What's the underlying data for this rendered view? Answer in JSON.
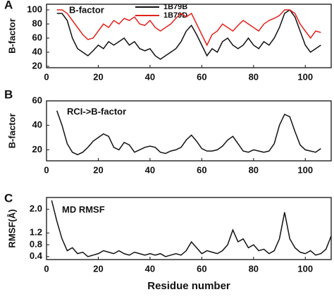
{
  "chart_data": [
    {
      "type": "line",
      "panel_label": "A",
      "title": "B-factor",
      "ylabel": "B-factor",
      "x": [
        4,
        6,
        8,
        10,
        12,
        14,
        16,
        18,
        20,
        22,
        24,
        26,
        28,
        30,
        32,
        34,
        36,
        38,
        40,
        42,
        44,
        46,
        48,
        50,
        52,
        54,
        56,
        58,
        60,
        62,
        64,
        66,
        68,
        70,
        72,
        74,
        76,
        78,
        80,
        82,
        84,
        86,
        88,
        90,
        92,
        94,
        96,
        98,
        100,
        102,
        104,
        106
      ],
      "series": [
        {
          "name": "1B79B",
          "color": "#111111",
          "values": [
            95,
            95,
            85,
            60,
            45,
            40,
            35,
            42,
            50,
            45,
            55,
            50,
            55,
            60,
            50,
            55,
            45,
            42,
            45,
            35,
            30,
            35,
            40,
            45,
            55,
            70,
            78,
            65,
            50,
            35,
            45,
            40,
            55,
            60,
            50,
            45,
            50,
            60,
            50,
            45,
            55,
            50,
            60,
            75,
            95,
            100,
            90,
            70,
            50,
            40,
            45,
            50
          ]
        },
        {
          "name": "1B79D",
          "color": "#e3221c",
          "values": [
            100,
            100,
            95,
            85,
            75,
            65,
            58,
            60,
            70,
            80,
            75,
            85,
            80,
            88,
            85,
            90,
            80,
            78,
            85,
            75,
            70,
            75,
            80,
            88,
            95,
            90,
            95,
            80,
            65,
            50,
            65,
            70,
            80,
            75,
            70,
            78,
            85,
            80,
            75,
            70,
            80,
            85,
            88,
            92,
            100,
            100,
            95,
            80,
            70,
            60,
            70,
            68
          ]
        }
      ],
      "xlim": [
        0,
        110
      ],
      "xticks": [
        0,
        20,
        40,
        60,
        80,
        100
      ],
      "ylim": [
        18,
        108
      ],
      "yticks": [
        20,
        40,
        60,
        80,
        100
      ]
    },
    {
      "type": "line",
      "panel_label": "B",
      "annotation": "RCI->B-factor",
      "ylabel": "B-factor",
      "x": [
        4,
        6,
        8,
        10,
        12,
        14,
        16,
        18,
        20,
        22,
        24,
        26,
        28,
        30,
        32,
        34,
        36,
        38,
        40,
        42,
        44,
        46,
        48,
        50,
        52,
        54,
        56,
        58,
        60,
        62,
        64,
        66,
        68,
        70,
        72,
        74,
        76,
        78,
        80,
        82,
        84,
        86,
        88,
        90,
        92,
        94,
        96,
        98,
        100,
        102,
        104,
        106
      ],
      "series": [
        {
          "color": "#111111",
          "values": [
            52,
            40,
            25,
            18,
            16,
            18,
            22,
            27,
            30,
            33,
            31,
            22,
            20,
            26,
            24,
            18,
            20,
            22,
            23,
            22,
            18,
            17,
            19,
            20,
            22,
            28,
            32,
            27,
            21,
            19,
            19,
            20,
            23,
            28,
            31,
            25,
            19,
            18,
            20,
            19,
            18,
            19,
            25,
            40,
            49,
            47,
            35,
            24,
            20,
            19,
            18,
            21
          ]
        }
      ],
      "xlim": [
        0,
        110
      ],
      "xticks": [
        0,
        20,
        40,
        60,
        80,
        100
      ],
      "ylim": [
        11,
        60
      ],
      "yticks": [
        20,
        40,
        60
      ]
    },
    {
      "type": "line",
      "panel_label": "C",
      "annotation": "MD RMSF",
      "ylabel": "RMSF(Å)",
      "xlabel": "Residue number",
      "x": [
        2,
        4,
        6,
        8,
        10,
        12,
        14,
        16,
        18,
        20,
        22,
        24,
        26,
        28,
        30,
        32,
        34,
        36,
        38,
        40,
        42,
        44,
        46,
        48,
        50,
        52,
        54,
        56,
        58,
        60,
        62,
        64,
        66,
        68,
        70,
        72,
        74,
        76,
        78,
        80,
        82,
        84,
        86,
        88,
        90,
        92,
        94,
        96,
        98,
        100,
        102,
        104,
        106,
        108,
        110
      ],
      "series": [
        {
          "color": "#111111",
          "values": [
            2.3,
            1.6,
            1.0,
            0.6,
            0.7,
            0.5,
            0.55,
            0.4,
            0.45,
            0.5,
            0.6,
            0.55,
            0.5,
            0.6,
            0.5,
            0.45,
            0.55,
            0.5,
            0.45,
            0.5,
            0.45,
            0.5,
            0.4,
            0.45,
            0.5,
            0.45,
            0.6,
            0.9,
            0.7,
            0.5,
            0.6,
            0.55,
            0.5,
            0.6,
            0.8,
            1.3,
            0.9,
            1.0,
            0.7,
            0.8,
            0.6,
            0.65,
            0.5,
            0.6,
            1.0,
            1.9,
            1.0,
            0.7,
            0.55,
            0.5,
            0.6,
            0.45,
            0.5,
            0.65,
            1.1
          ]
        }
      ],
      "xlim": [
        0,
        110
      ],
      "xticks": [
        0,
        20,
        40,
        60,
        80,
        100
      ],
      "ylim": [
        0.3,
        2.4
      ],
      "yticks": [
        0.4,
        0.8,
        1.2,
        {
          "value": 2,
          "label": "2.0"
        }
      ]
    }
  ]
}
